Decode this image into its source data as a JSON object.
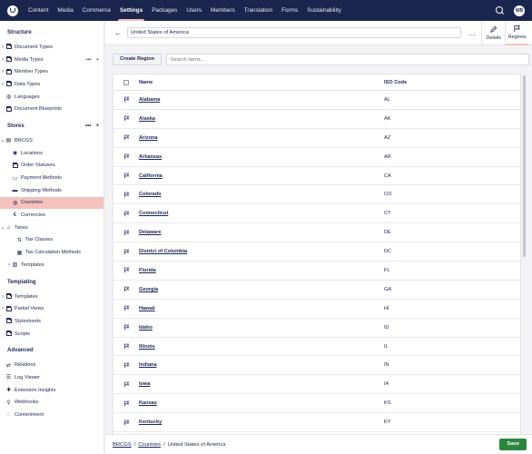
{
  "nav": {
    "items": [
      {
        "label": "Content"
      },
      {
        "label": "Media"
      },
      {
        "label": "Commerce"
      },
      {
        "label": "Settings",
        "active": true
      },
      {
        "label": "Packages"
      },
      {
        "label": "Users"
      },
      {
        "label": "Members"
      },
      {
        "label": "Translation"
      },
      {
        "label": "Forms"
      },
      {
        "label": "Sustainability"
      }
    ],
    "user_initials": "WB"
  },
  "sidebar": {
    "structure": {
      "heading": "Structure",
      "items": [
        "Document Types",
        "Media Types",
        "Member Types",
        "Data Types",
        "Languages",
        "Document Blueprints"
      ]
    },
    "stores": {
      "heading": "Stores",
      "root": "BRCGS",
      "items": [
        "Locations",
        "Order Statuses",
        "Payment Methods",
        "Shipping Methods",
        "Countries",
        "Currencies"
      ],
      "taxes": "Taxes",
      "tax_items": [
        "Tax Classes",
        "Tax Calculation Methods"
      ],
      "templates": "Templates"
    },
    "templating": {
      "heading": "Templating",
      "items": [
        "Templates",
        "Partial Views",
        "Stylesheets",
        "Scripts"
      ]
    },
    "advanced": {
      "heading": "Advanced",
      "items": [
        "Relations",
        "Log Viewer",
        "Extension Insights",
        "Webhooks",
        "Contentment"
      ]
    }
  },
  "header": {
    "name_value": "United States of America",
    "more_label": "...",
    "tabs": [
      {
        "label": "Details"
      },
      {
        "label": "Regions",
        "active": true
      }
    ]
  },
  "toolbar": {
    "create_label": "Create Region",
    "search_placeholder": "Search items..."
  },
  "table": {
    "columns": {
      "name": "Name",
      "iso": "ISO Code"
    },
    "rows": [
      {
        "name": "Alabama",
        "iso": "AL"
      },
      {
        "name": "Alaska",
        "iso": "AK"
      },
      {
        "name": "Arizona",
        "iso": "AZ"
      },
      {
        "name": "Arkansas",
        "iso": "AR"
      },
      {
        "name": "California",
        "iso": "CA"
      },
      {
        "name": "Colorado",
        "iso": "CO"
      },
      {
        "name": "Connecticut",
        "iso": "CT"
      },
      {
        "name": "Delaware",
        "iso": "DE"
      },
      {
        "name": "District of Columbia",
        "iso": "DC"
      },
      {
        "name": "Florida",
        "iso": "FL"
      },
      {
        "name": "Georgia",
        "iso": "GA"
      },
      {
        "name": "Hawaii",
        "iso": "HI"
      },
      {
        "name": "Idaho",
        "iso": "ID"
      },
      {
        "name": "Illinois",
        "iso": "IL"
      },
      {
        "name": "Indiana",
        "iso": "IN"
      },
      {
        "name": "Iowa",
        "iso": "IA"
      },
      {
        "name": "Kansas",
        "iso": "KS"
      },
      {
        "name": "Kentucky",
        "iso": "KY"
      }
    ]
  },
  "footer": {
    "breadcrumb": [
      "BRCGS",
      "Countries",
      "United States of America"
    ],
    "separator": "/",
    "save_label": "Save"
  },
  "colors": {
    "nav_bg": "#1b264f",
    "accent": "#f5c1bc",
    "save": "#2e8540"
  }
}
